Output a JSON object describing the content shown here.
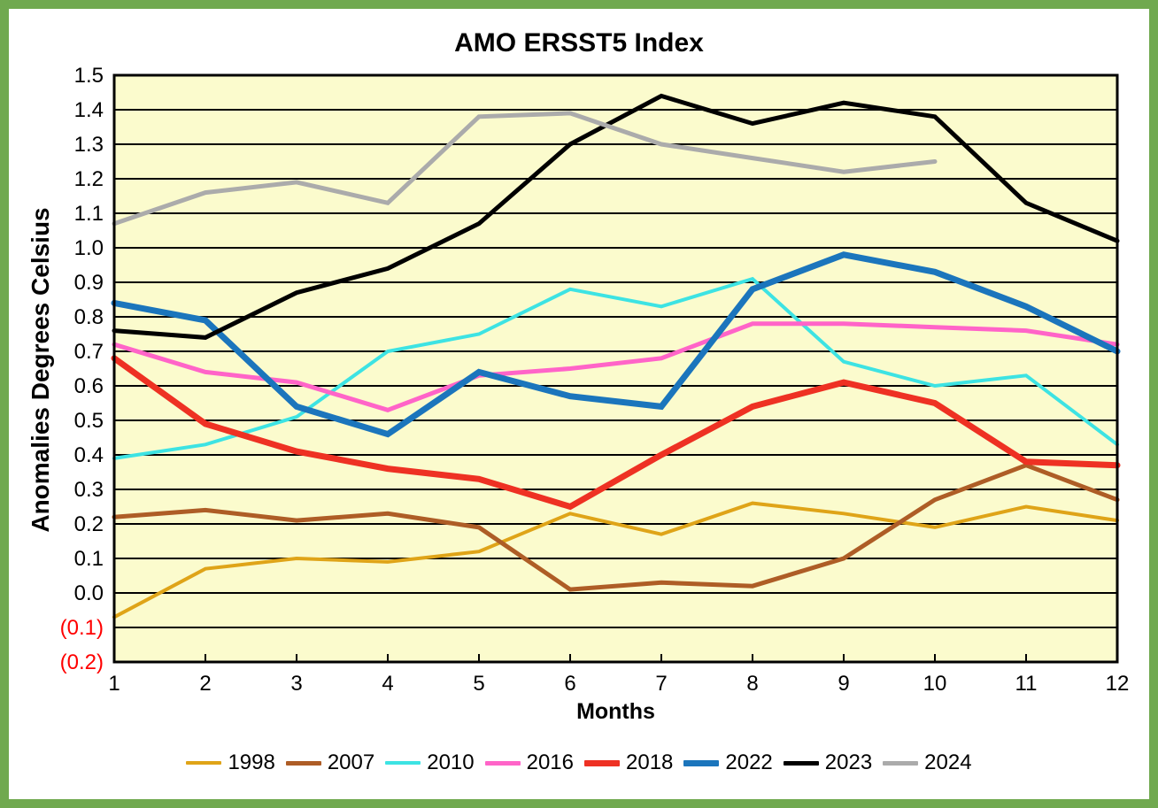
{
  "title": "AMO ERSST5 Index",
  "colors": {
    "frame_border": "#70A94F",
    "canvas_background": "#FFFFFF",
    "plot_background": "#FBFBCD",
    "gridline": "#000000",
    "axis_frame": "#000000",
    "tick_label": "#000000",
    "negative_tick_label": "#FF0000"
  },
  "y_axis": {
    "title": "Anomalies Degrees Celsius",
    "max": 1.5,
    "min": -0.2,
    "step": 0.1,
    "tick_labels": [
      "1.5",
      "1.4",
      "1.3",
      "1.2",
      "1.1",
      "1.0",
      "0.9",
      "0.8",
      "0.7",
      "0.6",
      "0.5",
      "0.4",
      "0.3",
      "0.2",
      "0.1",
      "0.0",
      "(0.1)",
      "(0.2)"
    ]
  },
  "x_axis": {
    "title": "Months",
    "tick_labels": [
      "1",
      "2",
      "3",
      "4",
      "5",
      "6",
      "7",
      "8",
      "9",
      "10",
      "11",
      "12"
    ]
  },
  "legend": {
    "entries": [
      "1998",
      "2007",
      "2010",
      "2016",
      "2018",
      "2022",
      "2023",
      "2024"
    ]
  },
  "chart_data": {
    "type": "line",
    "title": "AMO ERSST5 Index",
    "xlabel": "Months",
    "ylabel": "Anomalies Degrees Celsius",
    "x": [
      1,
      2,
      3,
      4,
      5,
      6,
      7,
      8,
      9,
      10,
      11,
      12
    ],
    "ylim": [
      -0.2,
      1.5
    ],
    "grid": "horizontal",
    "legend_position": "bottom",
    "series": [
      {
        "name": "1998",
        "color": "#DFA418",
        "width": 4,
        "values": [
          -0.07,
          0.07,
          0.1,
          0.09,
          0.12,
          0.23,
          0.17,
          0.26,
          0.23,
          0.19,
          0.25,
          0.21
        ]
      },
      {
        "name": "2007",
        "color": "#AE5D26",
        "width": 5,
        "values": [
          0.22,
          0.24,
          0.21,
          0.23,
          0.19,
          0.01,
          0.03,
          0.02,
          0.1,
          0.27,
          0.37,
          0.27
        ]
      },
      {
        "name": "2010",
        "color": "#3DE3E3",
        "width": 4,
        "values": [
          0.39,
          0.43,
          0.51,
          0.7,
          0.75,
          0.88,
          0.83,
          0.91,
          0.67,
          0.6,
          0.63,
          0.43
        ]
      },
      {
        "name": "2016",
        "color": "#FF64C8",
        "width": 5,
        "values": [
          0.72,
          0.64,
          0.61,
          0.53,
          0.63,
          0.65,
          0.68,
          0.78,
          0.78,
          0.77,
          0.76,
          0.72
        ]
      },
      {
        "name": "2018",
        "color": "#EE3123",
        "width": 7,
        "values": [
          0.68,
          0.49,
          0.41,
          0.36,
          0.33,
          0.25,
          0.4,
          0.54,
          0.61,
          0.55,
          0.38,
          0.37
        ]
      },
      {
        "name": "2022",
        "color": "#1B75BC",
        "width": 7,
        "values": [
          0.84,
          0.79,
          0.54,
          0.46,
          0.64,
          0.57,
          0.54,
          0.88,
          0.98,
          0.93,
          0.83,
          0.7
        ]
      },
      {
        "name": "2023",
        "color": "#000000",
        "width": 5,
        "values": [
          0.76,
          0.74,
          0.87,
          0.94,
          1.07,
          1.3,
          1.44,
          1.36,
          1.42,
          1.38,
          1.13,
          1.02
        ]
      },
      {
        "name": "2024",
        "color": "#ABABAB",
        "width": 5,
        "values": [
          1.07,
          1.16,
          1.19,
          1.13,
          1.38,
          1.39,
          1.3,
          1.26,
          1.22,
          1.25
        ]
      }
    ]
  }
}
